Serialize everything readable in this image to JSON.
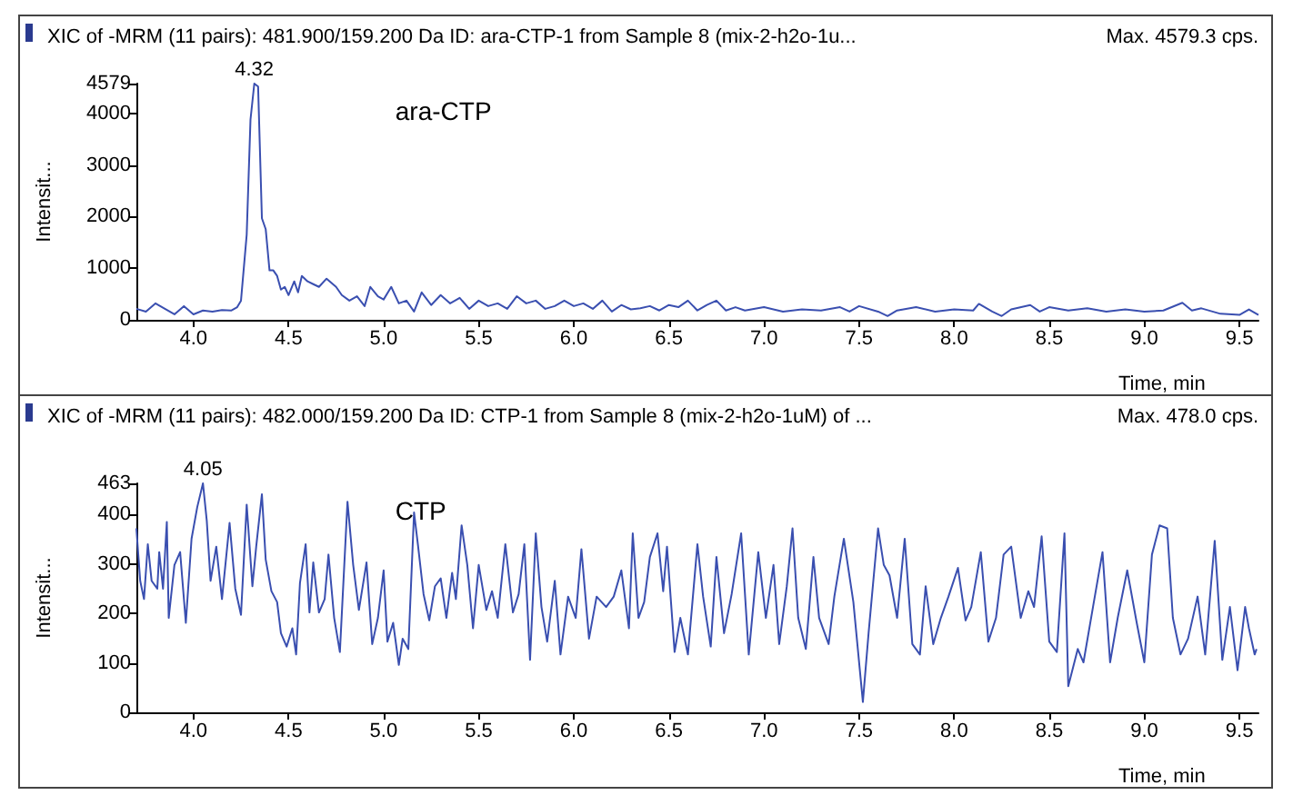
{
  "chart_data": [
    {
      "type": "line",
      "title": "XIC of -MRM (11 pairs): 481.900/159.200 Da ID: ara-CTP-1 from Sample 8 (mix-2-h2o-1u...",
      "subtitle": "Max. 4579.3 cps.",
      "xlabel": "Time, min",
      "ylabel": "Intensit...",
      "annotations": [
        "ara-CTP",
        {
          "text": "4.32",
          "x": 4.32,
          "y": 4579
        }
      ],
      "x": [
        3.7,
        3.75,
        3.8,
        3.85,
        3.9,
        3.95,
        4.0,
        4.05,
        4.1,
        4.15,
        4.2,
        4.23,
        4.25,
        4.28,
        4.3,
        4.32,
        4.34,
        4.36,
        4.38,
        4.4,
        4.42,
        4.44,
        4.46,
        4.48,
        4.5,
        4.53,
        4.55,
        4.57,
        4.6,
        4.63,
        4.66,
        4.7,
        4.75,
        4.78,
        4.82,
        4.86,
        4.9,
        4.93,
        4.97,
        5.0,
        5.04,
        5.08,
        5.12,
        5.16,
        5.2,
        5.25,
        5.3,
        5.35,
        5.4,
        5.45,
        5.5,
        5.55,
        5.6,
        5.65,
        5.7,
        5.75,
        5.8,
        5.85,
        5.9,
        5.95,
        6.0,
        6.05,
        6.1,
        6.15,
        6.2,
        6.25,
        6.3,
        6.35,
        6.4,
        6.45,
        6.5,
        6.55,
        6.6,
        6.65,
        6.7,
        6.75,
        6.8,
        6.85,
        6.9,
        7.0,
        7.1,
        7.2,
        7.3,
        7.4,
        7.45,
        7.5,
        7.6,
        7.65,
        7.7,
        7.8,
        7.9,
        8.0,
        8.1,
        8.13,
        8.2,
        8.25,
        8.3,
        8.4,
        8.45,
        8.5,
        8.6,
        8.7,
        8.8,
        8.9,
        9.0,
        9.1,
        9.2,
        9.25,
        9.3,
        9.4,
        9.5,
        9.55,
        9.6
      ],
      "series": [
        {
          "color": "#3a4fb0",
          "values": [
            213,
            160,
            319,
            213,
            106,
            266,
            106,
            181,
            160,
            191,
            181,
            245,
            372,
            1649,
            3883,
            4579,
            4522,
            1968,
            1756,
            958,
            958,
            851,
            585,
            638,
            479,
            745,
            532,
            851,
            745,
            691,
            638,
            798,
            638,
            479,
            372,
            457,
            266,
            638,
            457,
            394,
            638,
            319,
            372,
            160,
            532,
            287,
            479,
            319,
            426,
            213,
            372,
            266,
            319,
            213,
            457,
            319,
            372,
            213,
            266,
            372,
            266,
            319,
            213,
            372,
            160,
            287,
            202,
            223,
            266,
            181,
            287,
            245,
            372,
            181,
            287,
            372,
            181,
            245,
            181,
            245,
            160,
            202,
            181,
            245,
            160,
            266,
            160,
            74,
            181,
            245,
            160,
            202,
            181,
            309,
            160,
            74,
            202,
            287,
            160,
            245,
            181,
            223,
            160,
            202,
            160,
            181,
            330,
            181,
            223,
            117,
            96,
            202,
            96
          ]
        }
      ],
      "xlim": [
        3.7,
        9.6
      ],
      "xticks": [
        {
          "value": 4,
          "label": "4.0"
        },
        {
          "value": 4.5,
          "label": "4.5"
        },
        {
          "value": 5,
          "label": "5.0"
        },
        {
          "value": 5.5,
          "label": "5.5"
        },
        {
          "value": 6,
          "label": "6.0"
        },
        {
          "value": 6.5,
          "label": "6.5"
        },
        {
          "value": 7,
          "label": "7.0"
        },
        {
          "value": 7.5,
          "label": "7.5"
        },
        {
          "value": 8,
          "label": "8.0"
        },
        {
          "value": 8.5,
          "label": "8.5"
        },
        {
          "value": 9,
          "label": "9.0"
        },
        {
          "value": 9.5,
          "label": "9.5"
        }
      ],
      "ylim": [
        0,
        4579
      ],
      "yticks": [
        0,
        1000,
        2000,
        3000,
        4000,
        4579
      ]
    },
    {
      "type": "line",
      "title": "XIC of -MRM (11 pairs): 482.000/159.200 Da ID: CTP-1 from Sample 8 (mix-2-h2o-1uM) of ...",
      "subtitle": "Max. 478.0 cps.",
      "xlabel": "Time, min",
      "ylabel": "Intensit...",
      "annotations": [
        "CTP",
        {
          "text": "4.05",
          "x": 4.05,
          "y": 463
        }
      ],
      "x": [
        3.7,
        3.72,
        3.74,
        3.76,
        3.78,
        3.81,
        3.82,
        3.84,
        3.86,
        3.87,
        3.9,
        3.93,
        3.96,
        3.99,
        4.02,
        4.05,
        4.07,
        4.09,
        4.12,
        4.15,
        4.19,
        4.22,
        4.25,
        4.28,
        4.31,
        4.33,
        4.36,
        4.38,
        4.41,
        4.44,
        4.46,
        4.49,
        4.52,
        4.54,
        4.56,
        4.59,
        4.61,
        4.63,
        4.66,
        4.69,
        4.71,
        4.74,
        4.77,
        4.81,
        4.84,
        4.87,
        4.91,
        4.94,
        4.97,
        5.0,
        5.02,
        5.05,
        5.08,
        5.1,
        5.13,
        5.16,
        5.18,
        5.21,
        5.24,
        5.27,
        5.3,
        5.33,
        5.36,
        5.38,
        5.41,
        5.44,
        5.47,
        5.5,
        5.54,
        5.57,
        5.6,
        5.64,
        5.68,
        5.71,
        5.74,
        5.77,
        5.8,
        5.83,
        5.86,
        5.9,
        5.93,
        5.97,
        6.01,
        6.04,
        6.08,
        6.12,
        6.17,
        6.21,
        6.25,
        6.29,
        6.31,
        6.34,
        6.37,
        6.4,
        6.44,
        6.47,
        6.49,
        6.53,
        6.56,
        6.6,
        6.65,
        6.68,
        6.72,
        6.75,
        6.79,
        6.83,
        6.88,
        6.92,
        6.97,
        7.01,
        7.05,
        7.08,
        7.12,
        7.15,
        7.18,
        7.22,
        7.26,
        7.29,
        7.34,
        7.37,
        7.42,
        7.47,
        7.52,
        7.55,
        7.6,
        7.63,
        7.66,
        7.7,
        7.74,
        7.78,
        7.82,
        7.85,
        7.89,
        7.93,
        7.97,
        8.02,
        8.06,
        8.09,
        8.14,
        8.18,
        8.22,
        8.26,
        8.3,
        8.35,
        8.39,
        8.42,
        8.46,
        8.5,
        8.54,
        8.58,
        8.6,
        8.65,
        8.68,
        8.73,
        8.78,
        8.82,
        8.86,
        8.91,
        8.96,
        9.0,
        9.04,
        9.08,
        9.12,
        9.15,
        9.19,
        9.23,
        9.28,
        9.32,
        9.37,
        9.41,
        9.45,
        9.49,
        9.53,
        9.55,
        9.58,
        9.59
      ],
      "series": [
        {
          "color": "#3a4fb0",
          "values": [
            372,
            266,
            229,
            340,
            266,
            250,
            324,
            250,
            385,
            191,
            298,
            324,
            181,
            351,
            415,
            463,
            388,
            266,
            335,
            229,
            383,
            250,
            197,
            420,
            255,
            335,
            441,
            309,
            245,
            223,
            160,
            133,
            170,
            117,
            261,
            340,
            202,
            303,
            202,
            229,
            319,
            191,
            122,
            426,
            298,
            207,
            303,
            138,
            191,
            287,
            143,
            181,
            96,
            149,
            128,
            404,
            340,
            239,
            186,
            255,
            271,
            191,
            282,
            229,
            378,
            298,
            170,
            298,
            207,
            245,
            191,
            340,
            202,
            239,
            340,
            106,
            362,
            213,
            143,
            266,
            117,
            234,
            191,
            330,
            149,
            234,
            213,
            234,
            287,
            170,
            362,
            191,
            223,
            314,
            362,
            245,
            335,
            122,
            191,
            117,
            340,
            234,
            133,
            314,
            160,
            239,
            362,
            117,
            324,
            191,
            298,
            138,
            255,
            372,
            191,
            128,
            314,
            191,
            138,
            234,
            351,
            223,
            21,
            160,
            372,
            298,
            277,
            191,
            351,
            138,
            117,
            255,
            138,
            191,
            234,
            292,
            186,
            213,
            324,
            143,
            191,
            319,
            335,
            191,
            245,
            213,
            356,
            143,
            122,
            362,
            53,
            128,
            101,
            213,
            324,
            101,
            191,
            287,
            181,
            101,
            319,
            378,
            372,
            191,
            117,
            149,
            234,
            117,
            347,
            106,
            213,
            85,
            213,
            170,
            117,
            128
          ]
        }
      ],
      "xlim": [
        3.7,
        9.6
      ],
      "xticks": [
        {
          "value": 4,
          "label": "4.0"
        },
        {
          "value": 4.5,
          "label": "4.5"
        },
        {
          "value": 5,
          "label": "5.0"
        },
        {
          "value": 5.5,
          "label": "5.5"
        },
        {
          "value": 6,
          "label": "6.0"
        },
        {
          "value": 6.5,
          "label": "6.5"
        },
        {
          "value": 7,
          "label": "7.0"
        },
        {
          "value": 7.5,
          "label": "7.5"
        },
        {
          "value": 8,
          "label": "8.0"
        },
        {
          "value": 8.5,
          "label": "8.5"
        },
        {
          "value": 9,
          "label": "9.0"
        },
        {
          "value": 9.5,
          "label": "9.5"
        }
      ],
      "ylim": [
        0,
        463
      ],
      "yticks": [
        0,
        100,
        200,
        300,
        400,
        463
      ]
    }
  ]
}
